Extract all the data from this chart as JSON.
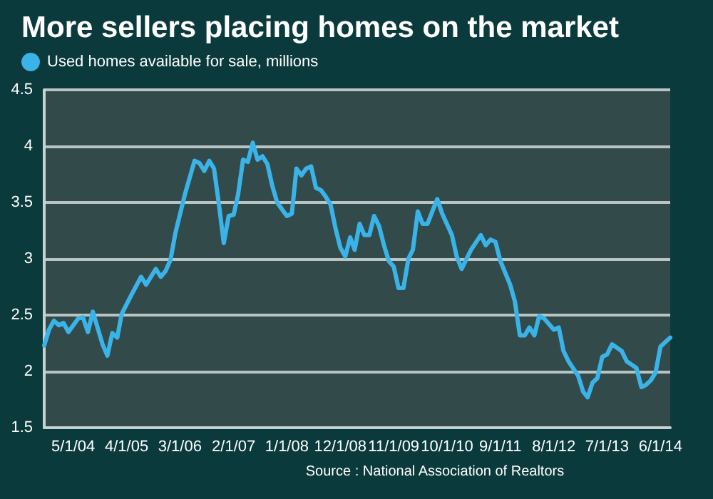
{
  "chart_data": {
    "type": "line",
    "title": "More sellers placing homes on the market",
    "annotations": [
      "Source : National Association of Realtors"
    ],
    "legend": "top left",
    "grid": "y",
    "marker": "none",
    "line_style": "solid",
    "x": [
      "2003-11",
      "2003-12",
      "2004-01",
      "2004-02",
      "2004-03",
      "2004-04",
      "2004-06",
      "2004-07",
      "2004-08",
      "2004-09",
      "2004-11",
      "2004-12",
      "2005-01",
      "2005-02",
      "2005-03",
      "2005-05",
      "2005-07",
      "2005-08",
      "2005-10",
      "2005-11",
      "2005-12",
      "2006-01",
      "2006-02",
      "2006-04",
      "2006-06",
      "2006-07",
      "2006-08",
      "2006-09",
      "2006-10",
      "2006-11",
      "2006-12",
      "2007-01",
      "2007-02",
      "2007-03",
      "2007-04",
      "2007-05",
      "2007-06",
      "2007-07",
      "2007-08",
      "2007-09",
      "2007-10",
      "2007-11",
      "2007-12",
      "2008-01",
      "2008-02",
      "2008-03",
      "2008-04",
      "2008-05",
      "2008-06",
      "2008-07",
      "2008-08",
      "2008-09",
      "2008-10",
      "2008-11",
      "2008-12",
      "2009-01",
      "2009-02",
      "2009-03",
      "2009-04",
      "2009-05",
      "2009-06",
      "2009-07",
      "2009-08",
      "2009-09",
      "2009-10",
      "2009-11",
      "2009-12",
      "2010-01",
      "2010-02",
      "2010-03",
      "2010-04",
      "2010-05",
      "2010-06",
      "2010-07",
      "2010-08",
      "2010-09",
      "2010-11",
      "2010-12",
      "2011-01",
      "2011-02",
      "2011-03",
      "2011-05",
      "2011-06",
      "2011-07",
      "2011-08",
      "2011-09",
      "2011-11",
      "2011-12",
      "2012-01",
      "2012-02",
      "2012-03",
      "2012-04",
      "2012-05",
      "2012-06",
      "2012-08",
      "2012-09",
      "2012-10",
      "2012-11",
      "2013-01",
      "2013-02",
      "2013-03",
      "2013-04",
      "2013-05",
      "2013-06",
      "2013-07",
      "2013-08",
      "2013-10",
      "2013-11",
      "2014-01",
      "2014-02",
      "2014-03",
      "2014-04",
      "2014-05",
      "2014-06",
      "2014-07",
      "2014-08"
    ],
    "series": [
      {
        "name": "Used homes available for sale, millions",
        "color": "#3ab4e8",
        "values": [
          2.23,
          2.37,
          2.45,
          2.41,
          2.43,
          2.35,
          2.47,
          2.48,
          2.35,
          2.53,
          2.24,
          2.14,
          2.34,
          2.3,
          2.51,
          2.68,
          2.84,
          2.77,
          2.91,
          2.84,
          2.89,
          2.99,
          3.23,
          3.57,
          3.87,
          3.85,
          3.78,
          3.87,
          3.8,
          3.48,
          3.14,
          3.38,
          3.39,
          3.57,
          3.88,
          3.86,
          4.03,
          3.88,
          3.91,
          3.84,
          3.65,
          3.5,
          3.44,
          3.38,
          3.4,
          3.8,
          3.74,
          3.8,
          3.82,
          3.63,
          3.61,
          3.55,
          3.48,
          3.27,
          3.1,
          3.02,
          3.19,
          3.08,
          3.31,
          3.21,
          3.21,
          3.38,
          3.29,
          3.12,
          2.98,
          2.93,
          2.74,
          2.74,
          3.0,
          3.08,
          3.42,
          3.31,
          3.31,
          3.42,
          3.53,
          3.4,
          3.21,
          3.02,
          2.91,
          3.0,
          3.08,
          3.21,
          3.12,
          3.17,
          3.15,
          2.98,
          2.77,
          2.62,
          2.32,
          2.32,
          2.39,
          2.32,
          2.49,
          2.47,
          2.37,
          2.39,
          2.18,
          2.09,
          1.96,
          1.82,
          1.77,
          1.9,
          1.94,
          2.13,
          2.15,
          2.24,
          2.18,
          2.09,
          2.03,
          1.86,
          1.88,
          1.92,
          1.99,
          2.22,
          2.26,
          2.3
        ]
      }
    ],
    "xlim": [
      "2003-11",
      "2014-08"
    ],
    "xticks": [
      {
        "value": "2004-05-01",
        "label": "5/1/04"
      },
      {
        "value": "2005-04-01",
        "label": "4/1/05"
      },
      {
        "value": "2006-03-01",
        "label": "3/1/06"
      },
      {
        "value": "2007-02-01",
        "label": "2/1/07"
      },
      {
        "value": "2008-01-01",
        "label": "1/1/08"
      },
      {
        "value": "2008-12-01",
        "label": "12/1/08"
      },
      {
        "value": "2009-11-01",
        "label": "11/1/09"
      },
      {
        "value": "2010-10-01",
        "label": "10/1/10"
      },
      {
        "value": "2011-09-01",
        "label": "9/1/11"
      },
      {
        "value": "2012-08-01",
        "label": "8/1/12"
      },
      {
        "value": "2013-07-01",
        "label": "7/1/13"
      },
      {
        "value": "2014-06-01",
        "label": "6/1/14"
      }
    ],
    "ylim": [
      1.5,
      4.5
    ],
    "yticks": [
      1.5,
      2,
      2.5,
      3,
      3.5,
      4,
      4.5
    ]
  }
}
